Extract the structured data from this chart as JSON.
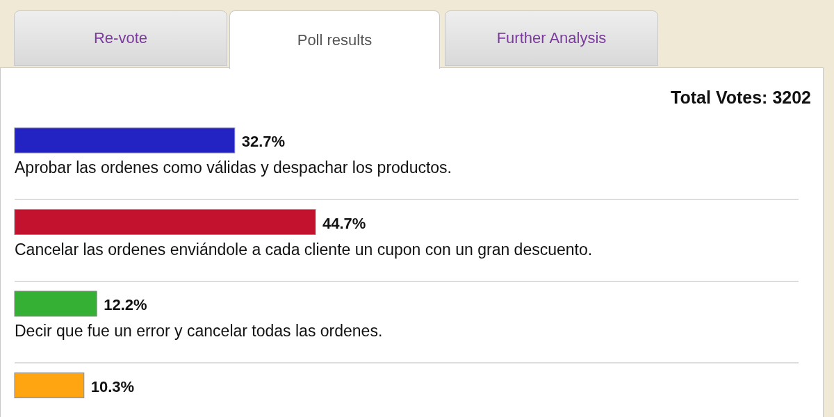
{
  "chart_data": {
    "type": "bar",
    "orientation": "horizontal",
    "subtitle": "Total Votes: 3202",
    "annotations": [
      "Re-vote",
      "Poll results",
      "Further Analysis"
    ],
    "categories": [
      "Aprobar las ordenes como válidas y despachar los productos.",
      "Cancelar las ordenes enviándole a cada cliente un cupon con un gran descuento.",
      "Decir que fue un error y cancelar todas las ordenes.",
      null
    ],
    "values": [
      32.7,
      44.7,
      12.2,
      10.3
    ],
    "value_labels": [
      "32.7%",
      "44.7%",
      "12.2%",
      "10.3%"
    ],
    "colors": [
      "#2323c4",
      "#c3122e",
      "#35b035",
      "#ffa512"
    ]
  }
}
